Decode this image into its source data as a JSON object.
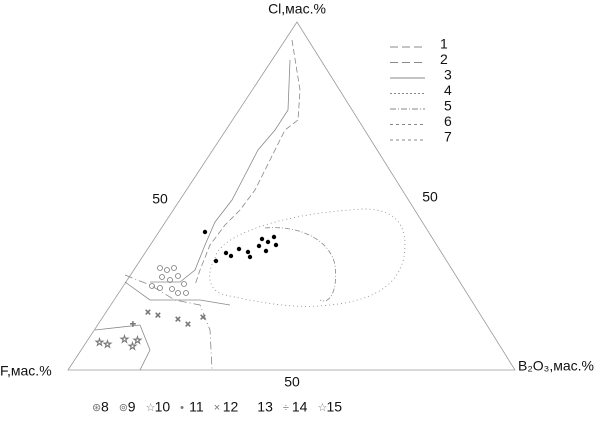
{
  "vertices": {
    "top": "Cl,мас.%",
    "left": "F,мас.%",
    "right": "B₂O₃,мас.%"
  },
  "mid_labels": {
    "left": "50",
    "right": "50",
    "bottom": "50"
  },
  "legend_lines": [
    "1",
    "2",
    "3",
    "4",
    "5",
    "6",
    "7"
  ],
  "legend_symbols": [
    "8",
    "9",
    "10",
    "11",
    "12",
    "13",
    "14",
    "15"
  ]
}
